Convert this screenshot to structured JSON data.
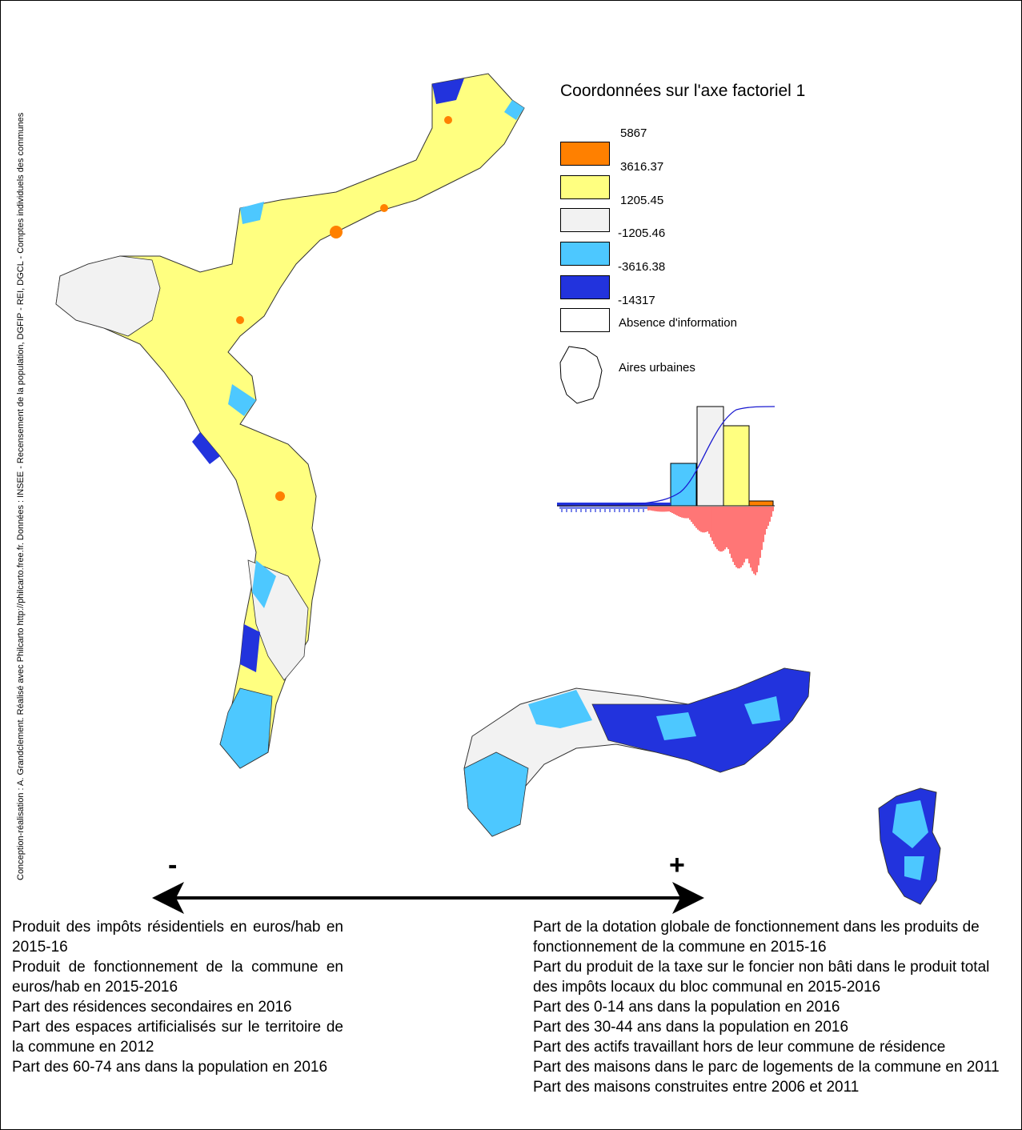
{
  "credit": "Conception-réalisation : A. Grandclement. Réalisé avec Philcarto http://philcarto.free.fr. Données : INSEE - Recensement de la population, DGFIP - REI, DGCL - Comptes individuels des communes",
  "legend": {
    "title": "Coordonnées sur l'axe factoriel 1",
    "breaks": [
      "5867",
      "3616.37",
      "1205.45",
      "-1205.46",
      "-3616.38",
      "-14317"
    ],
    "classes": [
      {
        "color": "#ff8000"
      },
      {
        "color": "#ffff80"
      },
      {
        "color": "#f2f2f2"
      },
      {
        "color": "#4dc8ff"
      },
      {
        "color": "#2233dd"
      },
      {
        "color": "#ffffff"
      }
    ],
    "absence_label": "Absence d'information",
    "urban_areas_label": "Aires urbaines"
  },
  "axis": {
    "minus": "-",
    "plus": "+"
  },
  "negative_variables": [
    "Produit des impôts résidentiels en euros/hab en 2015-16",
    "Produit de fonctionnement de la commune en euros/hab en 2015-2016",
    "Part des résidences secondaires en 2016",
    "Part des espaces artificialisés sur le territoire de la commune en 2012",
    "Part des 60-74 ans dans la population en 2016"
  ],
  "positive_variables": [
    "Part de la dotation globale de fonctionnement dans les produits de fonctionnement de la commune en 2015-16",
    "Part du produit de la taxe sur le foncier non bâti dans le produit total des impôts locaux du bloc communal en 2015-2016",
    "Part des 0-14 ans dans la population en 2016",
    "Part des 30-44 ans dans la population en 2016",
    "Part des actifs travaillant hors de leur commune de résidence",
    "Part des maisons dans le parc de logements de la commune en 2011",
    "Part des maisons construites entre 2006 et 2011"
  ]
}
